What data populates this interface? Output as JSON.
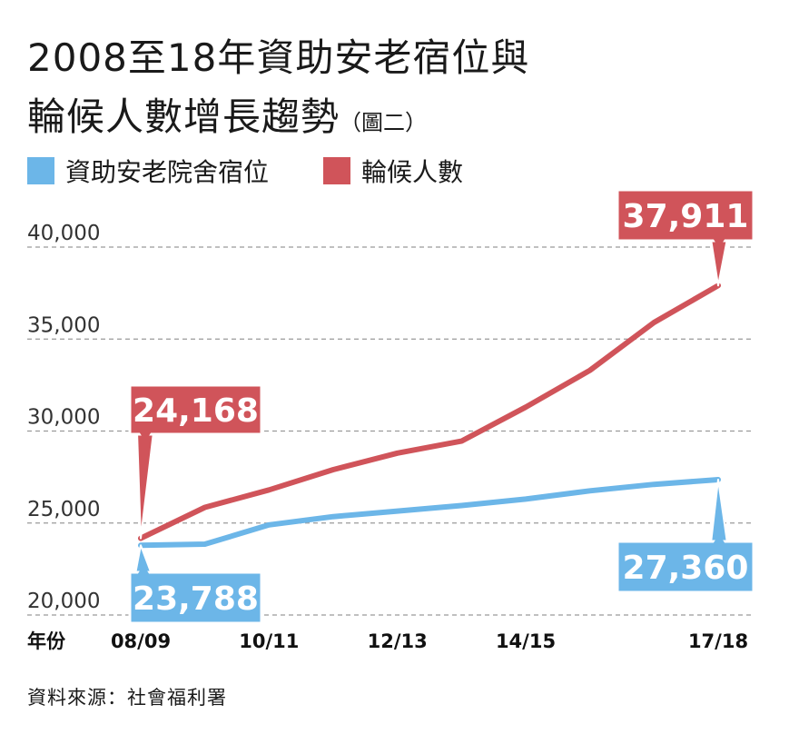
{
  "title": {
    "line1": "2008至18年資助安老宿位與",
    "line2": "輪候人數增長趨勢",
    "note": "（圖二）"
  },
  "legend": [
    {
      "label": "資助安老院舍宿位",
      "color": "#6cb6e8"
    },
    {
      "label": "輪候人數",
      "color": "#d0545a"
    }
  ],
  "source": "資料來源：社會福利署",
  "chart_data": {
    "type": "line",
    "xlabel": "年份",
    "ylabel": "",
    "ylim": [
      20000,
      40000
    ],
    "yticks": [
      "40,000",
      "35,000",
      "30,000",
      "25,000",
      "20,000"
    ],
    "ytick_values": [
      40000,
      35000,
      30000,
      25000,
      20000
    ],
    "grid": true,
    "legend_position": "top-left",
    "x": [
      "08/09",
      "09/10",
      "10/11",
      "11/12",
      "12/13",
      "13/14",
      "14/15",
      "15/16",
      "16/17",
      "17/18"
    ],
    "xtick_labels": [
      "08/09",
      "10/11",
      "12/13",
      "14/15",
      "17/18"
    ],
    "series": [
      {
        "name": "資助安老院舍宿位",
        "color": "#6cb6e8",
        "values": [
          23788,
          23850,
          24900,
          25350,
          25650,
          25950,
          26300,
          26750,
          27100,
          27360
        ],
        "callout": "23,788",
        "callout_end": "27,360"
      },
      {
        "name": "輪候人數",
        "color": "#d0545a",
        "values": [
          24168,
          25850,
          26800,
          27900,
          28800,
          29450,
          31300,
          33300,
          35900,
          37911
        ],
        "callout": "24,168",
        "callout_end": "37,911"
      }
    ]
  }
}
